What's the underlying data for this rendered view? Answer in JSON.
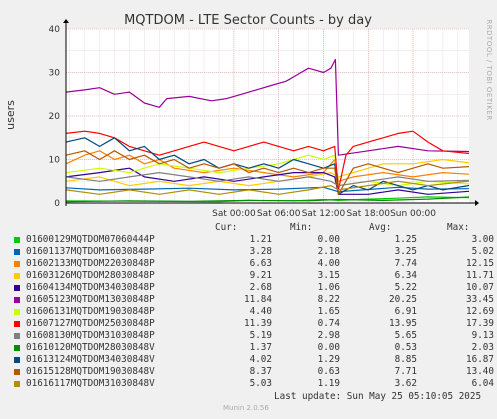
{
  "chart_data": {
    "type": "line",
    "title": "MQTDOM - LTE Sector Counts - by day",
    "ylabel": "users",
    "side_label": "RRDTOOL / TOBI OETIKER",
    "ylim": [
      0,
      40
    ],
    "yticks": [
      "0",
      "10",
      "20",
      "30",
      "40"
    ],
    "x_range_hours": [
      -22.5,
      31.5
    ],
    "xticks": [
      {
        "label": "Sat 00:00",
        "hour": 0
      },
      {
        "label": "Sat 06:00",
        "hour": 6
      },
      {
        "label": "Sat 12:00",
        "hour": 12
      },
      {
        "label": "Sat 18:00",
        "hour": 18
      },
      {
        "label": "Sun 00:00",
        "hour": 24
      }
    ],
    "grid": true,
    "series": [
      {
        "name": "01600129MQTDOM07060444P",
        "color": "#00cc00",
        "cur": "1.21",
        "min": "0.00",
        "avg": "1.25",
        "max": "3.00",
        "points": [
          [
            -22.5,
            0.5
          ],
          [
            -2,
            0.3
          ],
          [
            2,
            0.6
          ],
          [
            8,
            0.5
          ],
          [
            12,
            0.8
          ],
          [
            14,
            0.6
          ],
          [
            18,
            0.9
          ],
          [
            22,
            1.1
          ],
          [
            26,
            1.4
          ],
          [
            31.5,
            1.21
          ]
        ]
      },
      {
        "name": "01601137MQTDOM16030848P",
        "color": "#0066b3",
        "cur": "3.28",
        "min": "2.18",
        "avg": "3.25",
        "max": "5.02",
        "points": [
          [
            -22.5,
            3.5
          ],
          [
            -18,
            3.0
          ],
          [
            -12,
            3.2
          ],
          [
            -6,
            3.4
          ],
          [
            0,
            3.0
          ],
          [
            6,
            3.2
          ],
          [
            12,
            3.6
          ],
          [
            14,
            2.6
          ],
          [
            18,
            3.1
          ],
          [
            22,
            3.6
          ],
          [
            26,
            3.2
          ],
          [
            31.5,
            3.28
          ]
        ]
      },
      {
        "name": "01602133MQTDOM22030848P",
        "color": "#ff8000",
        "cur": "6.63",
        "min": "4.00",
        "avg": "7.74",
        "max": "12.15",
        "points": [
          [
            -22.5,
            9
          ],
          [
            -20,
            11
          ],
          [
            -18,
            12
          ],
          [
            -16,
            10
          ],
          [
            -14,
            11
          ],
          [
            -12,
            9
          ],
          [
            -10,
            10
          ],
          [
            -8,
            8
          ],
          [
            -4,
            7
          ],
          [
            0,
            8
          ],
          [
            4,
            7
          ],
          [
            8,
            6
          ],
          [
            12,
            7
          ],
          [
            13.5,
            10
          ],
          [
            14,
            5
          ],
          [
            16,
            6
          ],
          [
            20,
            7
          ],
          [
            24,
            6
          ],
          [
            28,
            7
          ],
          [
            31.5,
            6.63
          ]
        ]
      },
      {
        "name": "01603126MQTDOM28030848P",
        "color": "#ffcc00",
        "cur": "9.21",
        "min": "3.15",
        "avg": "6.34",
        "max": "11.71",
        "points": [
          [
            -22.5,
            5
          ],
          [
            -18,
            6
          ],
          [
            -14,
            4
          ],
          [
            -10,
            5
          ],
          [
            -6,
            4
          ],
          [
            -2,
            5
          ],
          [
            2,
            4
          ],
          [
            6,
            5
          ],
          [
            10,
            6
          ],
          [
            13,
            7
          ],
          [
            14,
            6
          ],
          [
            16,
            7
          ],
          [
            18,
            8
          ],
          [
            20,
            9
          ],
          [
            24,
            9
          ],
          [
            28,
            10
          ],
          [
            31.5,
            9.21
          ]
        ]
      },
      {
        "name": "01604134MQTDOM34030848P",
        "color": "#330099",
        "cur": "2.68",
        "min": "1.06",
        "avg": "5.22",
        "max": "10.07",
        "points": [
          [
            -22.5,
            6
          ],
          [
            -18,
            7
          ],
          [
            -14,
            8
          ],
          [
            -12,
            6
          ],
          [
            -8,
            5
          ],
          [
            -4,
            6
          ],
          [
            0,
            5
          ],
          [
            4,
            6
          ],
          [
            8,
            7
          ],
          [
            12,
            7
          ],
          [
            13.5,
            6
          ],
          [
            14,
            2
          ],
          [
            18,
            2
          ],
          [
            22,
            3
          ],
          [
            26,
            2
          ],
          [
            31.5,
            2.68
          ]
        ]
      },
      {
        "name": "01605123MQTDOM13030848P",
        "color": "#990099",
        "cur": "11.84",
        "min": "8.22",
        "avg": "20.25",
        "max": "33.45",
        "points": [
          [
            -22.5,
            25.5
          ],
          [
            -20,
            26
          ],
          [
            -18,
            26.5
          ],
          [
            -16,
            25
          ],
          [
            -14,
            25.5
          ],
          [
            -12,
            23
          ],
          [
            -10,
            22
          ],
          [
            -9,
            24
          ],
          [
            -6,
            24.5
          ],
          [
            -3,
            23.5
          ],
          [
            -1,
            24
          ],
          [
            1,
            25
          ],
          [
            3,
            26
          ],
          [
            5,
            27
          ],
          [
            7,
            28
          ],
          [
            9,
            30
          ],
          [
            10,
            31
          ],
          [
            11,
            30.5
          ],
          [
            12,
            30
          ],
          [
            13,
            31
          ],
          [
            13.6,
            33
          ],
          [
            14,
            11
          ],
          [
            18,
            12
          ],
          [
            22,
            13
          ],
          [
            26,
            12
          ],
          [
            31.5,
            11.84
          ]
        ]
      },
      {
        "name": "01606131MQTDOM19030848P",
        "color": "#ccff00",
        "cur": "4.40",
        "min": "1.65",
        "avg": "6.91",
        "max": "12.69",
        "points": [
          [
            -22.5,
            7
          ],
          [
            -18,
            8
          ],
          [
            -14,
            7
          ],
          [
            -10,
            9
          ],
          [
            -6,
            8
          ],
          [
            -2,
            7
          ],
          [
            2,
            8
          ],
          [
            6,
            9
          ],
          [
            8,
            10
          ],
          [
            10,
            11
          ],
          [
            12,
            10
          ],
          [
            13.5,
            11
          ],
          [
            14,
            4
          ],
          [
            18,
            5
          ],
          [
            22,
            4
          ],
          [
            26,
            5
          ],
          [
            31.5,
            4.4
          ]
        ]
      },
      {
        "name": "01607127MQTDOM25030848P",
        "color": "#ff0000",
        "cur": "11.39",
        "min": "0.74",
        "avg": "13.95",
        "max": "17.39",
        "points": [
          [
            -22.5,
            16
          ],
          [
            -20,
            16.5
          ],
          [
            -18,
            16
          ],
          [
            -16,
            15
          ],
          [
            -14,
            13
          ],
          [
            -12,
            12
          ],
          [
            -10,
            11
          ],
          [
            -8,
            12
          ],
          [
            -6,
            13
          ],
          [
            -4,
            14
          ],
          [
            -2,
            13
          ],
          [
            0,
            12
          ],
          [
            2,
            13
          ],
          [
            4,
            14
          ],
          [
            6,
            13
          ],
          [
            8,
            12
          ],
          [
            10,
            13
          ],
          [
            12,
            12
          ],
          [
            13.5,
            13
          ],
          [
            14,
            3
          ],
          [
            15,
            11
          ],
          [
            16,
            13
          ],
          [
            18,
            14
          ],
          [
            20,
            15
          ],
          [
            22,
            16
          ],
          [
            24,
            16.5
          ],
          [
            26,
            14
          ],
          [
            28,
            12
          ],
          [
            31.5,
            11.39
          ]
        ]
      },
      {
        "name": "01608130MQTDOM31030848P",
        "color": "#808080",
        "cur": "5.19",
        "min": "2.98",
        "avg": "5.65",
        "max": "9.13",
        "points": [
          [
            -22.5,
            6
          ],
          [
            -18,
            5
          ],
          [
            -14,
            6
          ],
          [
            -10,
            7
          ],
          [
            -6,
            6
          ],
          [
            -2,
            5
          ],
          [
            2,
            6
          ],
          [
            6,
            5
          ],
          [
            10,
            6
          ],
          [
            13,
            5
          ],
          [
            14,
            4
          ],
          [
            18,
            5
          ],
          [
            22,
            6
          ],
          [
            26,
            5
          ],
          [
            31.5,
            5.19
          ]
        ]
      },
      {
        "name": "01610120MQTDOM28030848V",
        "color": "#008f00",
        "cur": "1.37",
        "min": "0.00",
        "avg": "0.53",
        "max": "2.03",
        "points": [
          [
            -22.5,
            0.3
          ],
          [
            -14,
            0.5
          ],
          [
            -6,
            0.4
          ],
          [
            2,
            0.6
          ],
          [
            10,
            0.5
          ],
          [
            14,
            0.8
          ],
          [
            20,
            0.6
          ],
          [
            26,
            0.9
          ],
          [
            31.5,
            1.37
          ]
        ]
      },
      {
        "name": "01613124MQTDOM34030848V",
        "color": "#00487d",
        "cur": "4.02",
        "min": "1.29",
        "avg": "8.85",
        "max": "16.87",
        "points": [
          [
            -22.5,
            14
          ],
          [
            -20,
            15
          ],
          [
            -18,
            13
          ],
          [
            -16,
            15
          ],
          [
            -14,
            12
          ],
          [
            -12,
            13
          ],
          [
            -10,
            10
          ],
          [
            -8,
            11
          ],
          [
            -6,
            9
          ],
          [
            -4,
            10
          ],
          [
            -2,
            8
          ],
          [
            0,
            9
          ],
          [
            2,
            8
          ],
          [
            4,
            9
          ],
          [
            6,
            8
          ],
          [
            8,
            10
          ],
          [
            10,
            9
          ],
          [
            12,
            8
          ],
          [
            13.5,
            9
          ],
          [
            14,
            2
          ],
          [
            16,
            4
          ],
          [
            18,
            3
          ],
          [
            20,
            5
          ],
          [
            22,
            4
          ],
          [
            24,
            3
          ],
          [
            26,
            4
          ],
          [
            28,
            3
          ],
          [
            31.5,
            4.02
          ]
        ]
      },
      {
        "name": "01615128MQTDOM19030848V",
        "color": "#b35a00",
        "cur": "8.37",
        "min": "0.63",
        "avg": "7.71",
        "max": "13.40",
        "points": [
          [
            -22.5,
            11
          ],
          [
            -20,
            12
          ],
          [
            -18,
            10
          ],
          [
            -16,
            12
          ],
          [
            -14,
            10
          ],
          [
            -12,
            11
          ],
          [
            -10,
            9
          ],
          [
            -8,
            10
          ],
          [
            -6,
            8
          ],
          [
            -4,
            9
          ],
          [
            -2,
            8
          ],
          [
            0,
            9
          ],
          [
            2,
            7
          ],
          [
            4,
            8
          ],
          [
            6,
            7
          ],
          [
            8,
            8
          ],
          [
            10,
            7
          ],
          [
            12,
            8
          ],
          [
            13.5,
            8
          ],
          [
            14,
            2
          ],
          [
            16,
            8
          ],
          [
            18,
            9
          ],
          [
            20,
            8
          ],
          [
            22,
            7
          ],
          [
            24,
            8
          ],
          [
            26,
            9
          ],
          [
            28,
            8
          ],
          [
            31.5,
            8.37
          ]
        ]
      },
      {
        "name": "01616117MQTDOM31030848V",
        "color": "#b38f00",
        "cur": "5.03",
        "min": "1.19",
        "avg": "3.62",
        "max": "6.04",
        "points": [
          [
            -22.5,
            3
          ],
          [
            -18,
            2
          ],
          [
            -14,
            3
          ],
          [
            -10,
            2
          ],
          [
            -6,
            3
          ],
          [
            -2,
            2
          ],
          [
            2,
            3
          ],
          [
            6,
            2
          ],
          [
            10,
            3
          ],
          [
            13,
            4
          ],
          [
            14,
            3
          ],
          [
            18,
            4
          ],
          [
            22,
            5
          ],
          [
            26,
            4
          ],
          [
            31.5,
            5.03
          ]
        ]
      }
    ]
  },
  "legend_headers": {
    "cur": "Cur:",
    "min": "Min:",
    "avg": "Avg:",
    "max": "Max:"
  },
  "footer": {
    "last_update": "Last update: Sun May 25 05:10:05 2025",
    "munin": "Munin 2.0.56"
  }
}
